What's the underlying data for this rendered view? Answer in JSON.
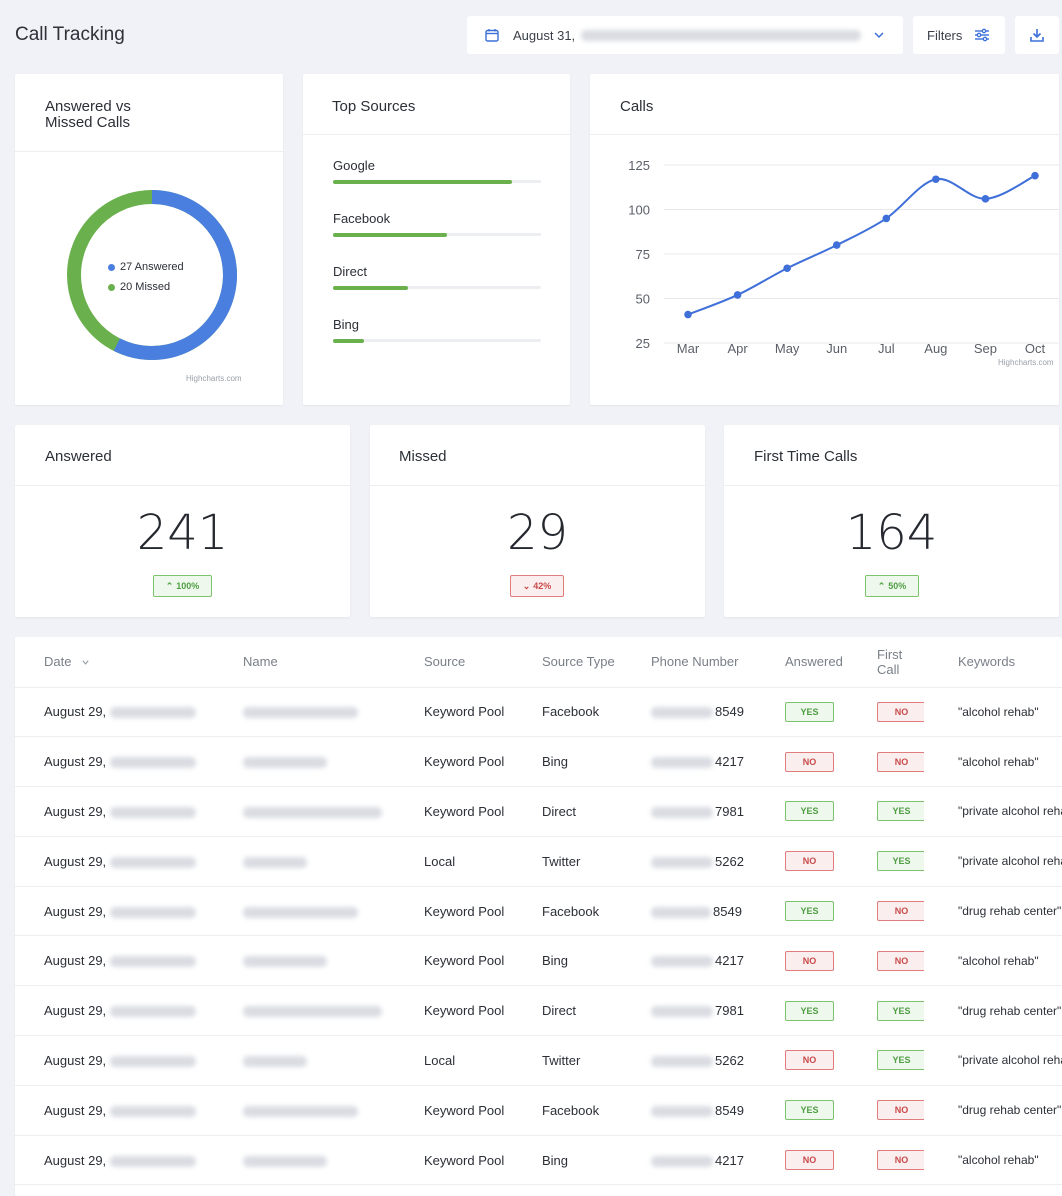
{
  "header": {
    "title": "Call Tracking",
    "date_label": "August 31,",
    "filters_label": "Filters"
  },
  "answered_vs_missed": {
    "title": "Answered vs Missed Calls",
    "answered_label": "27 Answered",
    "missed_label": "20 Missed",
    "credit": "Highcharts.com",
    "colors": {
      "answered": "#4a7fe0",
      "missed": "#6ab04c"
    }
  },
  "top_sources": {
    "title": "Top Sources",
    "items": [
      {
        "label": "Google",
        "fill": 0.86
      },
      {
        "label": "Facebook",
        "fill": 0.55
      },
      {
        "label": "Direct",
        "fill": 0.36
      },
      {
        "label": "Bing",
        "fill": 0.15
      }
    ]
  },
  "calls_chart": {
    "title": "Calls",
    "credit": "Highcharts.com"
  },
  "chart_data": {
    "type": "line",
    "title": "Calls",
    "categories": [
      "Mar",
      "Apr",
      "May",
      "Jun",
      "Jul",
      "Aug",
      "Sep",
      "Oct"
    ],
    "series": [
      {
        "values": [
          41,
          52,
          67,
          80,
          95,
          117,
          106,
          119
        ]
      }
    ],
    "yticks": [
      25,
      50,
      75,
      100,
      125
    ],
    "ylim": [
      25,
      125
    ],
    "grid": true,
    "color": "#3f6fd8"
  },
  "stats": [
    {
      "title": "Answered",
      "value": "241",
      "change": "100%",
      "direction": "up"
    },
    {
      "title": "Missed",
      "value": "29",
      "change": "42%",
      "direction": "down"
    },
    {
      "title": "First Time Calls",
      "value": "164",
      "change": "50%",
      "direction": "up"
    }
  ],
  "table": {
    "headers": [
      "Date",
      "Name",
      "Source",
      "Source Type",
      "Phone Number",
      "Answered",
      "First Call",
      "Keywords"
    ],
    "rows": [
      {
        "date": "August 29,",
        "source": "Keyword Pool",
        "source_type": "Facebook",
        "phone": "8549",
        "answered": "YES",
        "first_call": "NO",
        "keywords": "\"alcohol rehab\""
      },
      {
        "date": "August 29,",
        "source": "Keyword Pool",
        "source_type": "Bing",
        "phone": "4217",
        "answered": "NO",
        "first_call": "NO",
        "keywords": "\"alcohol rehab\""
      },
      {
        "date": "August 29,",
        "source": "Keyword Pool",
        "source_type": "Direct",
        "phone": "7981",
        "answered": "YES",
        "first_call": "YES",
        "keywords": "\"private alcohol rehab"
      },
      {
        "date": "August 29,",
        "source": "Local",
        "source_type": "Twitter",
        "phone": "5262",
        "answered": "NO",
        "first_call": "YES",
        "keywords": "\"private alcohol rehab"
      },
      {
        "date": "August 29,",
        "source": "Keyword Pool",
        "source_type": "Facebook",
        "phone": "8549",
        "answered": "YES",
        "first_call": "NO",
        "keywords": "\"drug rehab center\""
      },
      {
        "date": "August 29,",
        "source": "Keyword Pool",
        "source_type": "Bing",
        "phone": "4217",
        "answered": "NO",
        "first_call": "NO",
        "keywords": "\"alcohol rehab\""
      },
      {
        "date": "August 29,",
        "source": "Keyword Pool",
        "source_type": "Direct",
        "phone": "7981",
        "answered": "YES",
        "first_call": "YES",
        "keywords": "\"drug rehab center\""
      },
      {
        "date": "August 29,",
        "source": "Local",
        "source_type": "Twitter",
        "phone": "5262",
        "answered": "NO",
        "first_call": "YES",
        "keywords": "\"private alcohol rehab"
      },
      {
        "date": "August 29,",
        "source": "Keyword Pool",
        "source_type": "Facebook",
        "phone": "8549",
        "answered": "YES",
        "first_call": "NO",
        "keywords": "\"drug rehab center\""
      },
      {
        "date": "August 29,",
        "source": "Keyword Pool",
        "source_type": "Bing",
        "phone": "4217",
        "answered": "NO",
        "first_call": "NO",
        "keywords": "\"alcohol rehab\""
      }
    ]
  }
}
